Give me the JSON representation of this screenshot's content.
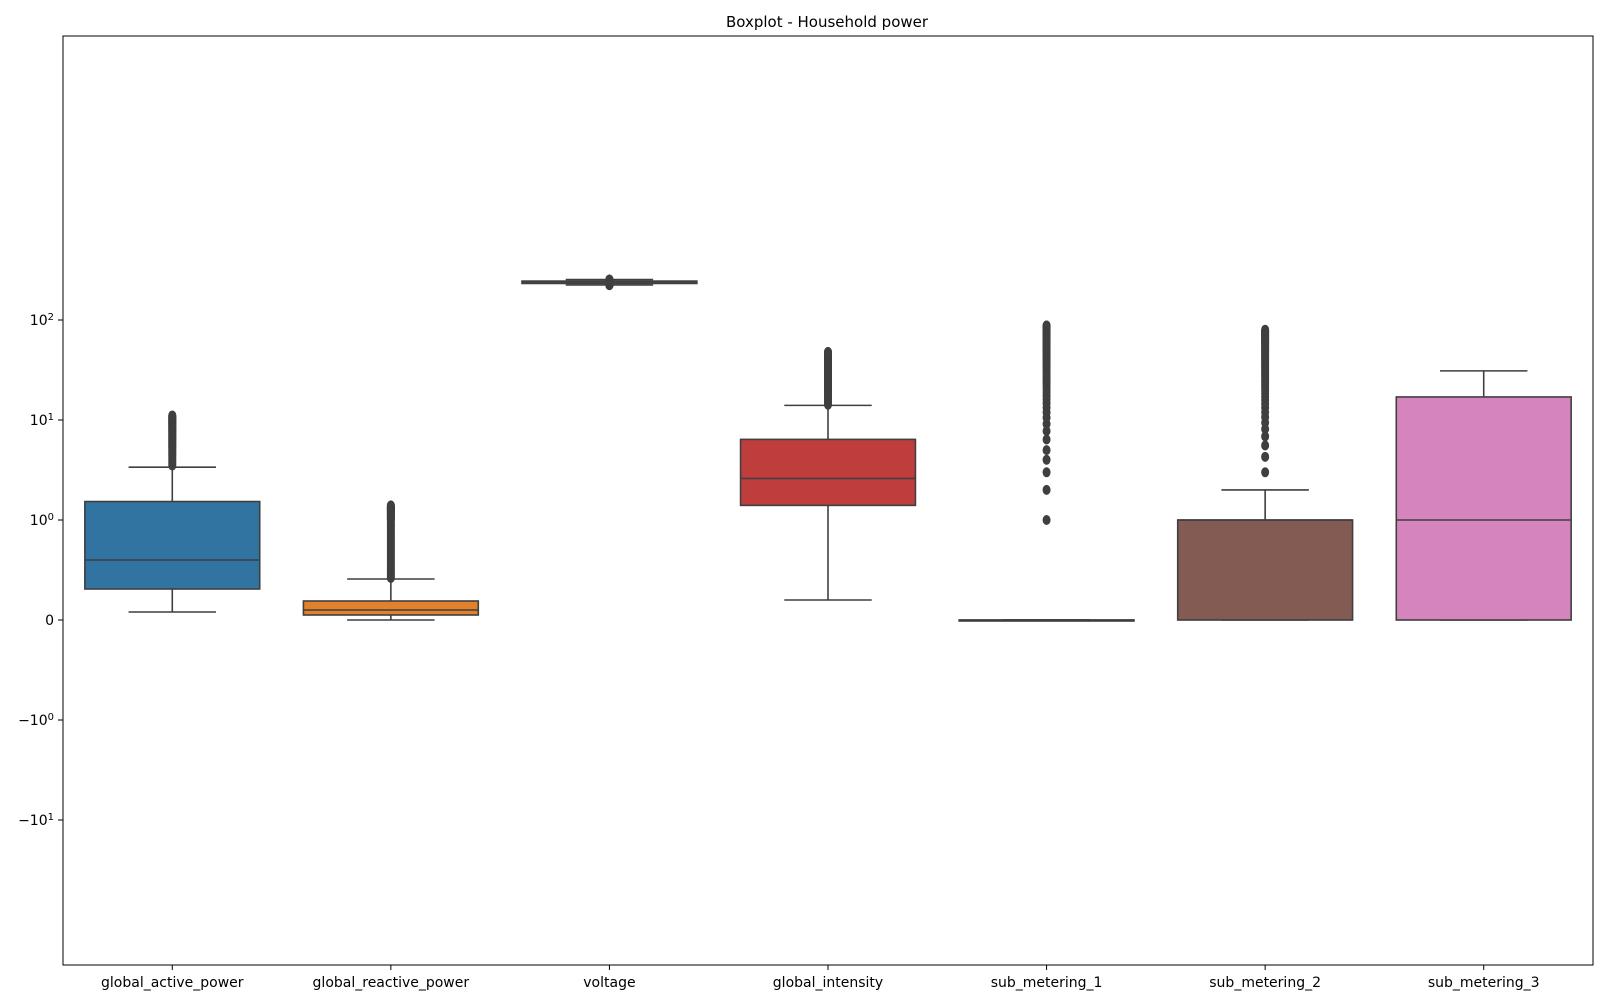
{
  "chart_data": {
    "type": "boxplot",
    "title": "Boxplot - Household power",
    "xlabel": "",
    "ylabel": "",
    "yscale": "symlog",
    "ylim": [
      -14,
      240
    ],
    "yticks": [
      {
        "value": 100,
        "base": "10",
        "exp": "2"
      },
      {
        "value": 10,
        "base": "10",
        "exp": "1"
      },
      {
        "value": 1,
        "base": "10",
        "exp": "0"
      },
      {
        "value": 0,
        "base": "0",
        "exp": ""
      },
      {
        "value": -1,
        "base": "−10",
        "exp": "0"
      },
      {
        "value": -10,
        "base": "−10",
        "exp": "1"
      }
    ],
    "categories": [
      "global_active_power",
      "global_reactive_power",
      "voltage",
      "global_intensity",
      "sub_metering_1",
      "sub_metering_2",
      "sub_metering_3"
    ],
    "boxes": [
      {
        "color": "#3274a1",
        "whislo": 0.08,
        "q1": 0.31,
        "med": 0.6,
        "q3": 1.53,
        "whishi": 3.37,
        "fliers": [
          3.5,
          11.1
        ]
      },
      {
        "color": "#e1812c",
        "whislo": 0.0,
        "q1": 0.05,
        "q3": 0.19,
        "med": 0.1,
        "whishi": 0.41,
        "fliers": [
          0.42,
          1.4
        ]
      },
      {
        "color": "#3a923a",
        "whislo": 224.0,
        "q1": 232.0,
        "med": 241.0,
        "q3": 245.0,
        "whishi": 254.0,
        "fliers": [
          223.0,
          254.0
        ]
      },
      {
        "color": "#c03d3e",
        "whislo": 0.2,
        "q1": 1.4,
        "med": 2.6,
        "q3": 6.4,
        "whishi": 14.0,
        "fliers": [
          14.2,
          48.0
        ]
      },
      {
        "color": "#9372b2",
        "whislo": 0.0,
        "q1": 0.0,
        "med": 0.0,
        "q3": 0.0,
        "whishi": 0.0,
        "fliers": [
          1.0,
          2.0,
          3.0,
          4.0,
          88.0
        ]
      },
      {
        "color": "#845b53",
        "whislo": 0.0,
        "q1": 0.0,
        "med": 1.0,
        "q3": 1.0,
        "whishi": 2.0,
        "fliers": [
          3.0,
          80.0
        ]
      },
      {
        "color": "#d684bd",
        "whislo": 0.0,
        "q1": 0.0,
        "med": 1.0,
        "q3": 17.0,
        "whishi": 31.0,
        "fliers": []
      }
    ],
    "grid": false,
    "legend": "none"
  }
}
